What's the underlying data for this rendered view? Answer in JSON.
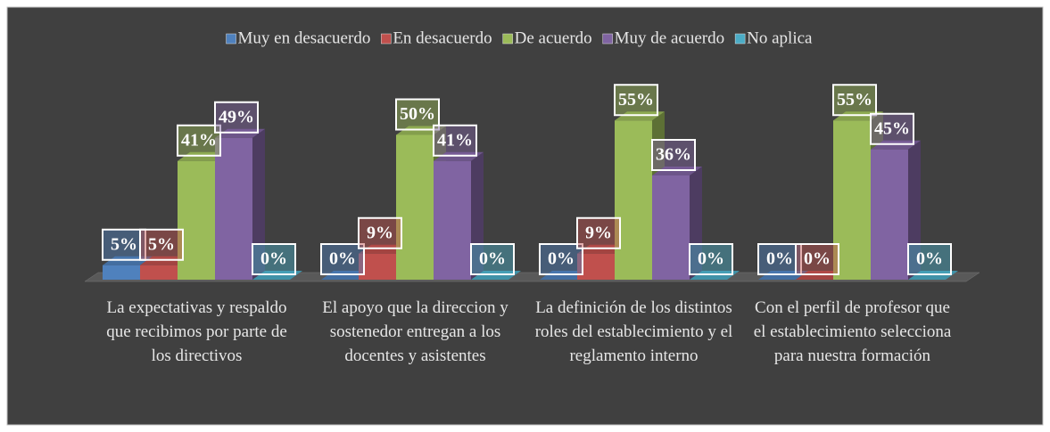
{
  "chart_data": {
    "type": "bar3d",
    "categories": [
      "La expectativas y respaldo que recibimos por parte de los directivos",
      "El apoyo que la direccion y sostenedor entregan a los docentes y asistentes",
      "La definición de los distintos roles del establecimiento y el reglamento interno",
      "Con el perfil de profesor que el establecimiento selecciona para nuestra formación"
    ],
    "series": [
      {
        "name": "Muy en desacuerdo",
        "color": "#4f81bd",
        "values": [
          5,
          0,
          0,
          0
        ],
        "value_labels": [
          "5%",
          "0%",
          "0%",
          "0%"
        ]
      },
      {
        "name": "En desacuerdo",
        "color": "#c0504d",
        "values": [
          5,
          9,
          9,
          0
        ],
        "value_labels": [
          "5%",
          "9%",
          "9%",
          "0%"
        ]
      },
      {
        "name": "De acuerdo",
        "color": "#9bbb59",
        "values": [
          41,
          50,
          55,
          55
        ],
        "value_labels": [
          "41%",
          "50%",
          "55%",
          "55%"
        ]
      },
      {
        "name": "Muy de acuerdo",
        "color": "#8064a2",
        "values": [
          49,
          41,
          36,
          45
        ],
        "value_labels": [
          "49%",
          "41%",
          "36%",
          "45%"
        ]
      },
      {
        "name": "No aplica",
        "color": "#4bacc6",
        "values": [
          0,
          0,
          0,
          0
        ],
        "value_labels": [
          "0%",
          "0%",
          "0%",
          "0%"
        ]
      }
    ],
    "legend": "top"
  }
}
